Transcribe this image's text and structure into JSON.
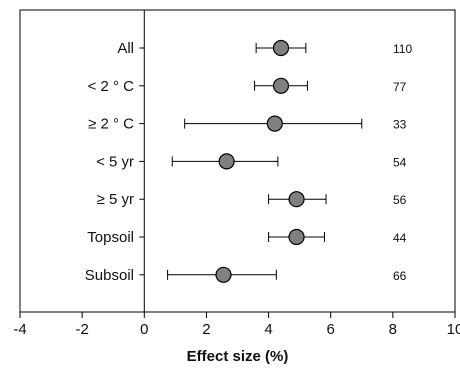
{
  "chart_data": {
    "type": "scatter",
    "subtype": "forest-plot",
    "title": "",
    "xlabel": "Effect size (%)",
    "ylabel": "",
    "xlim": [
      -4,
      10
    ],
    "xticks": [
      "-4",
      "-2",
      "0",
      "2",
      "4",
      "6",
      "8",
      "10"
    ],
    "grid": false,
    "legend": "none",
    "reference_line_x": 0,
    "marker_color": "#808080",
    "rows": [
      {
        "label": "All",
        "estimate": 4.4,
        "ci_low": 3.6,
        "ci_high": 5.2,
        "n": "110"
      },
      {
        "label": "< 2 ° C",
        "estimate": 4.4,
        "ci_low": 3.55,
        "ci_high": 5.25,
        "n": "77"
      },
      {
        "label": "≥ 2 ° C",
        "estimate": 4.2,
        "ci_low": 1.3,
        "ci_high": 7.0,
        "n": "33"
      },
      {
        "label": "< 5 yr",
        "estimate": 2.65,
        "ci_low": 0.9,
        "ci_high": 4.3,
        "n": "54"
      },
      {
        "label": "≥  5 yr",
        "estimate": 4.9,
        "ci_low": 4.0,
        "ci_high": 5.85,
        "n": "56"
      },
      {
        "label": "Topsoil",
        "estimate": 4.9,
        "ci_low": 4.0,
        "ci_high": 5.8,
        "n": "44"
      },
      {
        "label": "Subsoil",
        "estimate": 2.55,
        "ci_low": 0.75,
        "ci_high": 4.25,
        "n": "66"
      }
    ]
  }
}
